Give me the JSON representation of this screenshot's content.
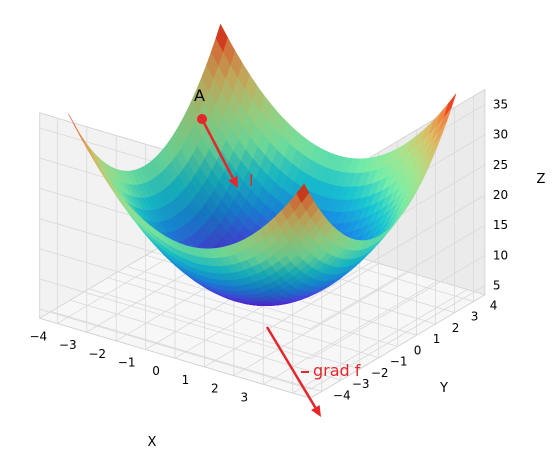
{
  "chart_data": {
    "type": "surface",
    "function": "z = x^2 + y^2 + 5",
    "x_range": [
      -4,
      4
    ],
    "y_range": [
      -4,
      4
    ],
    "zlim": [
      5,
      37
    ],
    "colormap": "rainbow",
    "grid": true,
    "xlabel": "X",
    "ylabel": "Y",
    "zlabel": "Z",
    "x_ticks": [
      "−4",
      "−3",
      "−2",
      "−1",
      "0",
      "1",
      "2",
      "3"
    ],
    "y_ticks": [
      "−4",
      "−3",
      "−2",
      "−1",
      "0",
      "1",
      "2",
      "3",
      "4"
    ],
    "z_ticks": [
      "5",
      "10",
      "15",
      "20",
      "25",
      "30",
      "35"
    ],
    "point": {
      "label": "A",
      "color": "#e6262b"
    },
    "arrows": [
      {
        "label": "l",
        "color": "#e6262b"
      },
      {
        "label": "grad f",
        "color": "#e6262b"
      }
    ]
  }
}
